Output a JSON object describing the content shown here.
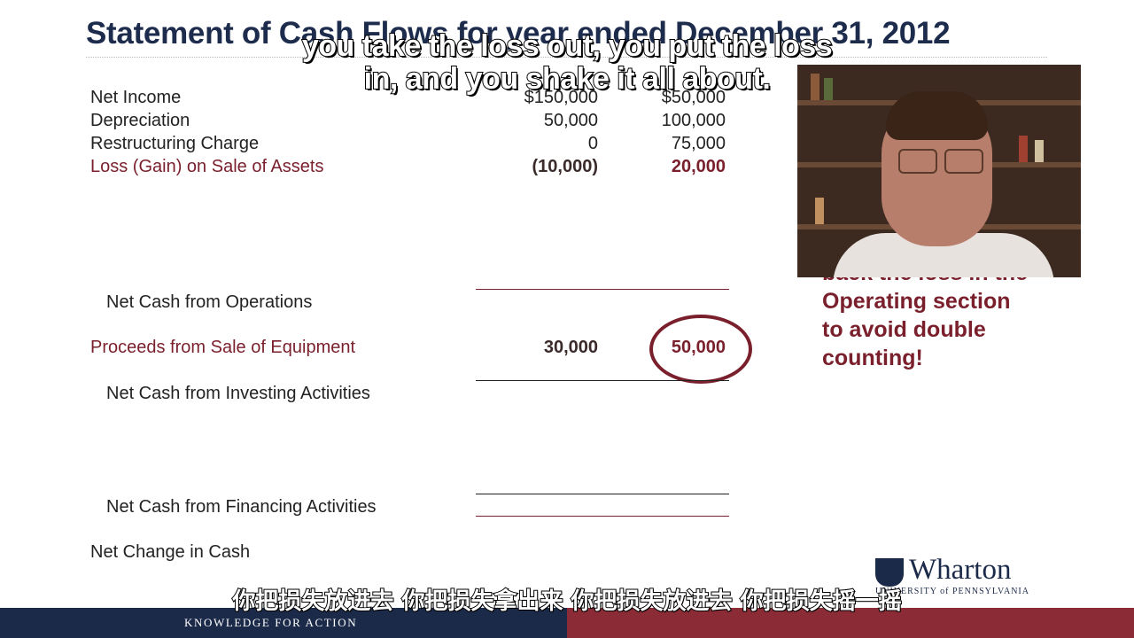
{
  "slide": {
    "title": "Statement of Cash Flows for year ended December 31, 2012",
    "rows": [
      {
        "label": "Net Income",
        "v1": "$150,000",
        "v2": "$50,000"
      },
      {
        "label": "Depreciation",
        "v1": "50,000",
        "v2": "100,000"
      },
      {
        "label": "Restructuring Charge",
        "v1": "0",
        "v2": "75,000"
      },
      {
        "label": "Loss (Gain) on Sale of Assets",
        "v1": "(10,000)",
        "v2": "20,000"
      }
    ],
    "net_cash_operations": "Net Cash from Operations",
    "proceeds": {
      "label": "Proceeds from Sale of Equipment",
      "v1": "30,000",
      "v2": "50,000"
    },
    "net_cash_investing": "Net Cash from Investing Activities",
    "net_cash_financing": "Net Cash from Financing Activities",
    "net_change": "Net Change in Cash",
    "note_lines": [
      "back the loss in the",
      "Operating section",
      "to avoid double",
      "counting!"
    ]
  },
  "captions": {
    "english_line1": "you take the loss out, you put the loss",
    "english_line2": "in, and you shake it all about.",
    "chinese": "你把损失放进去 你把损失拿出来 你把损失放进去 你把损失摇一摇"
  },
  "branding": {
    "logo_name": "Wharton",
    "logo_sub": "UNIVERSITY of PENNSYLVANIA",
    "tagline": "KNOWLEDGE FOR ACTION"
  },
  "colors": {
    "navy": "#1c2a4a",
    "maroon": "#7a1f2c"
  }
}
